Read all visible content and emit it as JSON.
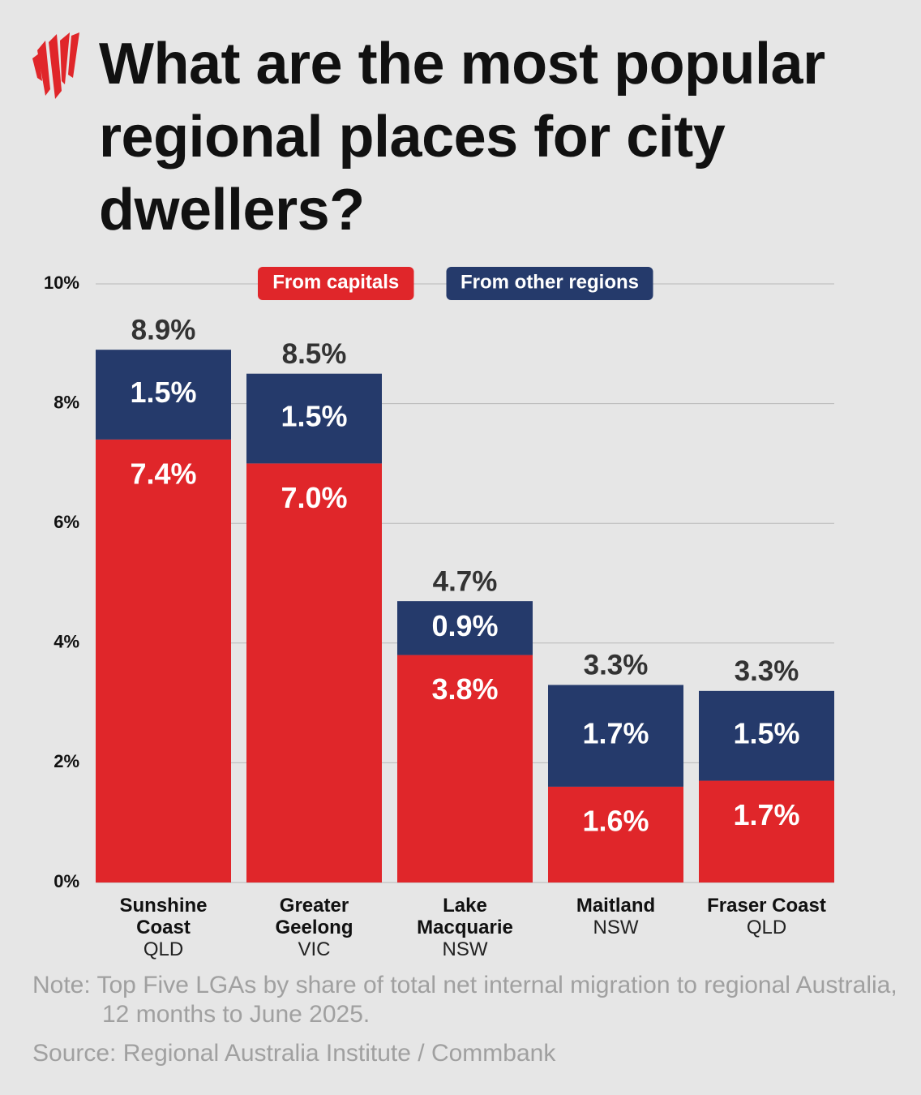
{
  "title": "What are the most popular regional places for city dwellers?",
  "note": "Note: Top Five LGAs by share of total net internal migration to regional Australia, 12 months to June 2025.",
  "source": "Source: Regional Australia Institute / Commbank",
  "chart_data": {
    "type": "stacked_bar",
    "categories": [
      "Sunshine Coast",
      "Greater Geelong",
      "Lake Macquarie",
      "Maitland",
      "Fraser Coast"
    ],
    "category_sublabels": [
      "QLD",
      "VIC",
      "NSW",
      "NSW",
      "QLD"
    ],
    "series": [
      {
        "name": "From capitals",
        "color": "#e0262a",
        "values": [
          7.4,
          7.0,
          3.8,
          1.6,
          1.7
        ],
        "value_labels": [
          "7.4%",
          "7.0%",
          "3.8%",
          "1.6%",
          "1.7%"
        ]
      },
      {
        "name": "From other regions",
        "color": "#253a6b",
        "values": [
          1.5,
          1.5,
          0.9,
          1.7,
          1.5
        ],
        "value_labels": [
          "1.5%",
          "1.5%",
          "0.9%",
          "1.7%",
          "1.5%"
        ]
      }
    ],
    "totals": [
      8.9,
      8.5,
      4.7,
      3.3,
      3.3
    ],
    "total_labels": [
      "8.9%",
      "8.5%",
      "4.7%",
      "3.3%",
      "3.3%"
    ],
    "ylim": [
      0,
      10
    ],
    "yticks": [
      {
        "value": 0,
        "label": "0%"
      },
      {
        "value": 2,
        "label": "2%"
      },
      {
        "value": 4,
        "label": "4%"
      },
      {
        "value": 6,
        "label": "6%"
      },
      {
        "value": 8,
        "label": "8%"
      },
      {
        "value": 10,
        "label": "10%"
      }
    ],
    "grid": true,
    "legend": "top"
  }
}
